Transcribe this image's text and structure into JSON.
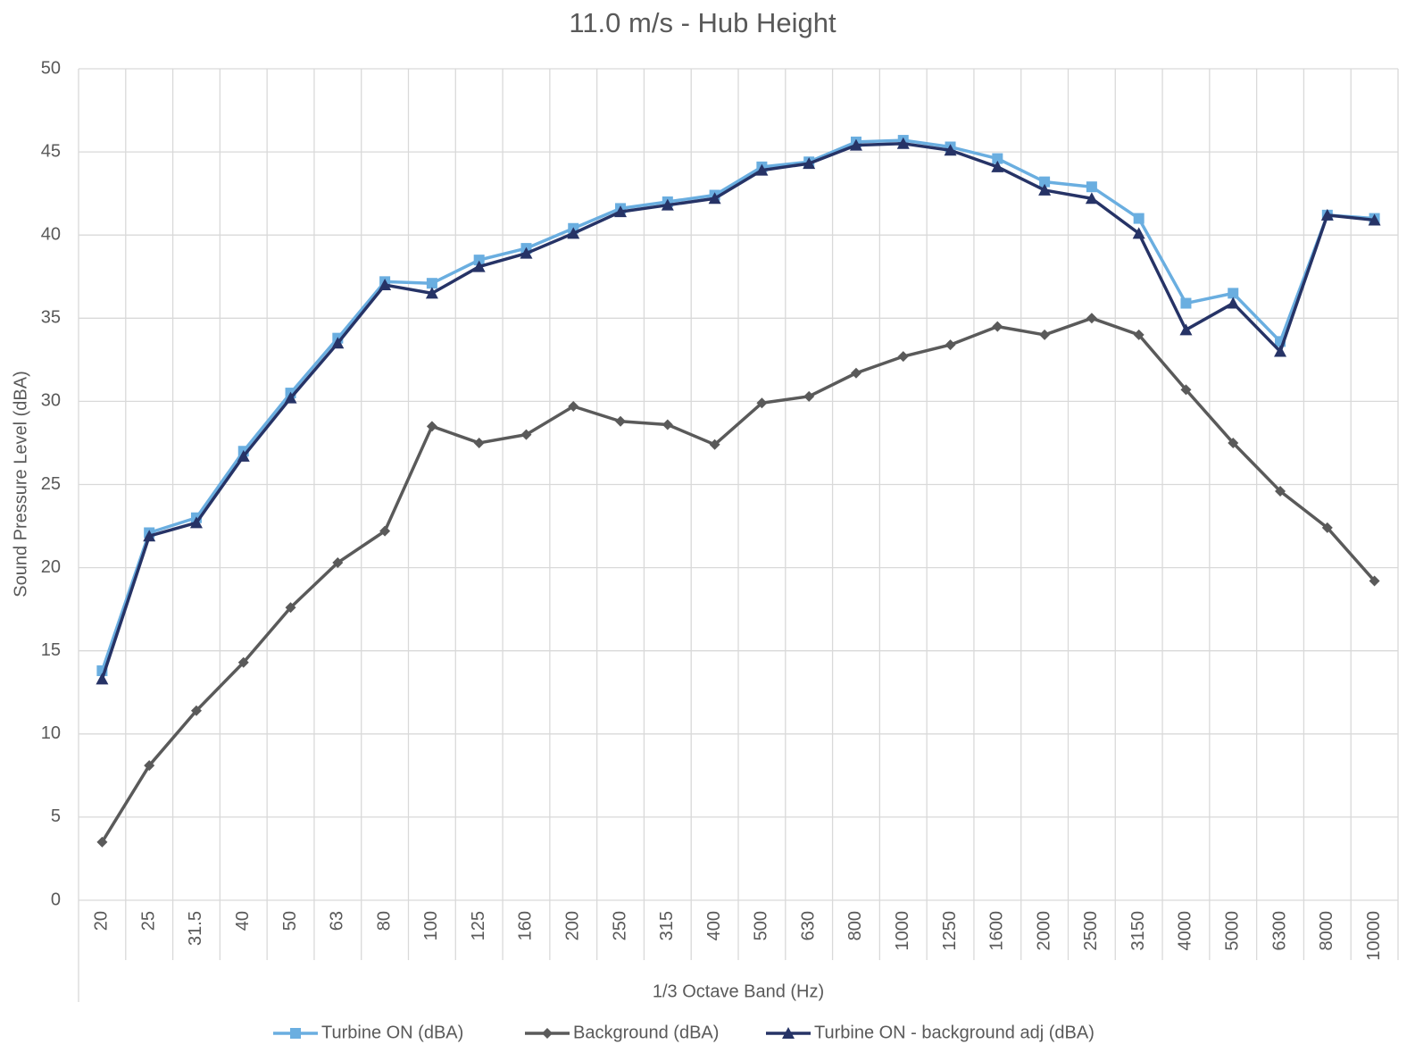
{
  "chart_data": {
    "type": "line",
    "title": "11.0 m/s - Hub Height",
    "x_label": "1/3 Octave Band (Hz)",
    "y_label": "Sound Pressure Level (dBA)",
    "categories": [
      "20",
      "25",
      "31.5",
      "40",
      "50",
      "63",
      "80",
      "100",
      "125",
      "160",
      "200",
      "250",
      "315",
      "400",
      "500",
      "630",
      "800",
      "1000",
      "1250",
      "1600",
      "2000",
      "2500",
      "3150",
      "4000",
      "5000",
      "6300",
      "8000",
      "10000"
    ],
    "series": [
      {
        "name": "Turbine ON (dBA)",
        "color": "#6aaee0",
        "marker": "square",
        "values": [
          13.8,
          22.1,
          23.0,
          27.0,
          30.5,
          33.8,
          37.2,
          37.1,
          38.5,
          39.2,
          40.4,
          41.6,
          42.0,
          42.4,
          44.1,
          44.4,
          45.6,
          45.7,
          45.3,
          44.6,
          43.2,
          42.9,
          41.0,
          35.9,
          36.5,
          33.6,
          41.2,
          41.0
        ]
      },
      {
        "name": "Background (dBA)",
        "color": "#5a5a5a",
        "marker": "diamond",
        "values": [
          3.5,
          8.1,
          11.4,
          14.3,
          17.6,
          20.3,
          22.2,
          28.5,
          27.5,
          28.0,
          29.7,
          28.8,
          28.6,
          27.4,
          29.9,
          30.3,
          31.7,
          32.7,
          33.4,
          34.5,
          34.0,
          35.0,
          34.0,
          30.7,
          27.5,
          24.6,
          22.4,
          19.2
        ]
      },
      {
        "name": "Turbine ON - background adj (dBA)",
        "color": "#263366",
        "marker": "triangle",
        "values": [
          13.3,
          21.9,
          22.7,
          26.7,
          30.2,
          33.5,
          37.0,
          36.5,
          38.1,
          38.9,
          40.1,
          41.4,
          41.8,
          42.2,
          43.9,
          44.3,
          45.4,
          45.5,
          45.1,
          44.1,
          42.7,
          42.2,
          40.1,
          34.3,
          35.9,
          33.0,
          41.2,
          40.9
        ]
      }
    ],
    "ylim": [
      0,
      50
    ],
    "yticks": [
      0,
      5,
      10,
      15,
      20,
      25,
      30,
      35,
      40,
      45,
      50
    ],
    "grid": true,
    "legend": "bottom"
  }
}
